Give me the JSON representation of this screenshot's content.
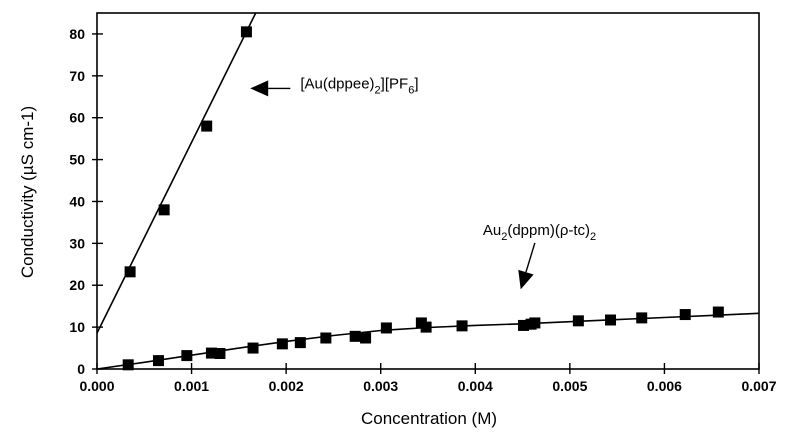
{
  "chart_data": {
    "type": "scatter",
    "xlabel": "Concentration (M)",
    "ylabel": "Conductivity (µS cm-1)",
    "xlim": [
      0.0,
      0.007
    ],
    "ylim": [
      0,
      85
    ],
    "x_ticks": [
      "0.000",
      "0.001",
      "0.002",
      "0.003",
      "0.004",
      "0.005",
      "0.006",
      "0.007"
    ],
    "y_ticks": [
      "0",
      "10",
      "20",
      "30",
      "40",
      "50",
      "60",
      "70",
      "80"
    ],
    "grid": false,
    "legend": "none",
    "series": [
      {
        "name": "[Au(dppee)2][PF6]",
        "marker": "square",
        "color": "#000000",
        "x": [
          0.00035,
          0.00071,
          0.00116,
          0.00158
        ],
        "y": [
          23.2,
          38.0,
          58.0,
          80.5
        ],
        "fit": {
          "type": "line",
          "x": [
            -0.0001,
            0.0017
          ],
          "y": [
            4.0,
            86.0
          ]
        }
      },
      {
        "name": "Au2(dppm)(p-tc)2",
        "marker": "square",
        "color": "#000000",
        "x": [
          0.00033,
          0.00065,
          0.00095,
          0.00121,
          0.0013,
          0.00165,
          0.00196,
          0.00215,
          0.00242,
          0.00273,
          0.00284,
          0.00306,
          0.00343,
          0.00348,
          0.00386,
          0.00451,
          0.00459,
          0.00463,
          0.00509,
          0.00543,
          0.00576,
          0.00622,
          0.00657
        ],
        "y": [
          1.0,
          2.0,
          3.2,
          3.8,
          3.7,
          5.0,
          6.0,
          6.3,
          7.4,
          7.8,
          7.4,
          9.8,
          11.0,
          10.0,
          10.3,
          10.4,
          10.7,
          11.0,
          11.5,
          11.7,
          12.2,
          13.0,
          13.6
        ],
        "fit": {
          "type": "curve",
          "x": [
            0.0,
            0.0005,
            0.001,
            0.0015,
            0.002,
            0.0025,
            0.003,
            0.0035,
            0.004,
            0.0045,
            0.005,
            0.0055,
            0.006,
            0.0065,
            0.007
          ],
          "y": [
            0.0,
            1.6,
            3.3,
            5.0,
            6.6,
            8.0,
            9.2,
            9.9,
            10.4,
            10.8,
            11.3,
            11.8,
            12.3,
            12.8,
            13.3
          ]
        }
      }
    ],
    "annotations": [
      {
        "main": "[Au(dppee)",
        "sub": "2",
        "mid": "][PF",
        "sub2": "6",
        "end": "]",
        "x": 0.00215,
        "y": 67.0,
        "arrow_to": [
          0.00162,
          67.0
        ]
      },
      {
        "main": "Au",
        "sub": "2",
        "mid": "(dppm)(ρ-tc)",
        "sub2": "2",
        "end": "",
        "x": 0.00408,
        "y": 32.0,
        "arrow_to": [
          0.00448,
          19.0
        ]
      }
    ]
  }
}
